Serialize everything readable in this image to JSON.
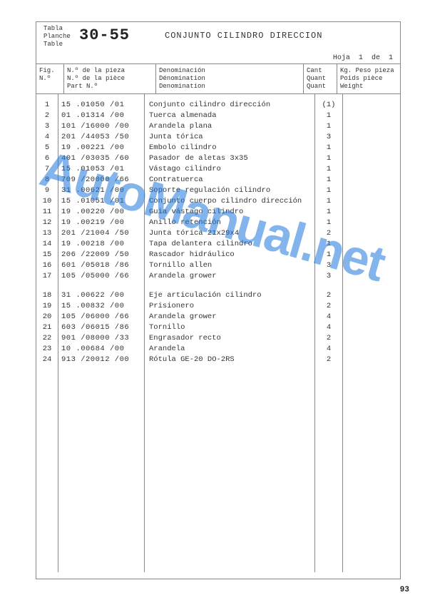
{
  "header": {
    "labels_left": [
      "Tabla",
      "Planche",
      "Table"
    ],
    "table_number": "30-55",
    "title": "CONJUNTO CILINDRO DIRECCION",
    "hoja_label": "Hoja",
    "hoja_page": "1",
    "hoja_de": "de",
    "hoja_total": "1"
  },
  "columns": {
    "fig": [
      "Fig.",
      "N.º"
    ],
    "part": [
      "N.º de la pieza",
      "N.º de la pièce",
      "Part N.º"
    ],
    "denom": [
      "Denominación",
      "Dénomination",
      "Denomination"
    ],
    "qty": [
      "Cant",
      "Quant",
      "Quant"
    ],
    "wt": [
      "Kg. Peso pieza",
      "Poids pièce",
      "Weight"
    ]
  },
  "rows": [
    {
      "fig": "1",
      "part": "15 .01050 /01",
      "denom": "Conjunto cilindro dirección",
      "qty": "(1)"
    },
    {
      "fig": "2",
      "part": "01 .01314 /00",
      "denom": "Tuerca almenada",
      "qty": "1"
    },
    {
      "fig": "3",
      "part": "101 /16000 /00",
      "denom": "Arandela plana",
      "qty": "1"
    },
    {
      "fig": "4",
      "part": "201 /44053 /50",
      "denom": "Junta tórica",
      "qty": "3"
    },
    {
      "fig": "5",
      "part": "19 .00221 /00",
      "denom": "Embolo cilindro",
      "qty": "1"
    },
    {
      "fig": "6",
      "part": "401 /03035 /60",
      "denom": "Pasador de aletas 3x35",
      "qty": "1"
    },
    {
      "fig": "7",
      "part": "15 .01053 /01",
      "denom": "Vástago cilindro",
      "qty": "1"
    },
    {
      "fig": "8",
      "part": "709 /20000 /66",
      "denom": "Contratuerca",
      "qty": "1"
    },
    {
      "fig": "9",
      "part": "31 .00621 /00",
      "denom": "Soporte regulación cilindro",
      "qty": "1"
    },
    {
      "fig": "10",
      "part": "15 .01051 /01",
      "denom": "Conjunto cuerpo cilindro dirección",
      "qty": "1"
    },
    {
      "fig": "11",
      "part": "19 .00220 /00",
      "denom": "Guia vástago cilindro",
      "qty": "1"
    },
    {
      "fig": "12",
      "part": "19 .00219 /00",
      "denom": "Anillo retención",
      "qty": "1"
    },
    {
      "fig": "13",
      "part": "201 /21004 /50",
      "denom": "Junta tórica 21x29x4",
      "qty": "2"
    },
    {
      "fig": "14",
      "part": "19 .00218 /00",
      "denom": "Tapa delantera cilindro",
      "qty": "1"
    },
    {
      "fig": "15",
      "part": "206 /22009 /50",
      "denom": "Rascador hidráulico",
      "qty": "1"
    },
    {
      "fig": "16",
      "part": "601 /05018 /86",
      "denom": "Tornillo allen",
      "qty": "3"
    },
    {
      "fig": "17",
      "part": "105 /05000 /66",
      "denom": "Arandela grower",
      "qty": "3"
    }
  ],
  "rows2": [
    {
      "fig": "18",
      "part": "31 .00622 /00",
      "denom": "Eje articulación cilindro",
      "qty": "2"
    },
    {
      "fig": "19",
      "part": "15 .00832 /00",
      "denom": "Prisionero",
      "qty": "2"
    },
    {
      "fig": "20",
      "part": "105 /06000 /66",
      "denom": "Arandela grower",
      "qty": "4"
    },
    {
      "fig": "21",
      "part": "603 /06015 /86",
      "denom": "Tornillo",
      "qty": "4"
    },
    {
      "fig": "22",
      "part": "901 /08000 /33",
      "denom": "Engrasador recto",
      "qty": "2"
    },
    {
      "fig": "23",
      "part": "10 .00684 /00",
      "denom": "Arandela",
      "qty": "4"
    },
    {
      "fig": "24",
      "part": "913 /20012 /00",
      "denom": "Rótula GE-20 DO-2RS",
      "qty": "2"
    }
  ],
  "page_number": "93",
  "watermark": "AutoManual.net"
}
